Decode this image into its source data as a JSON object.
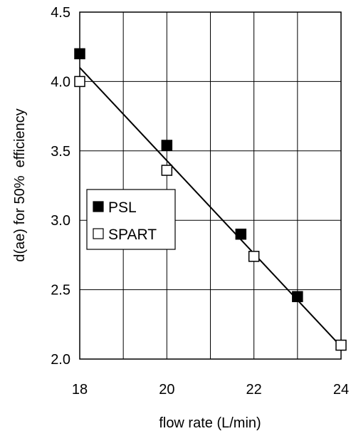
{
  "chart_data": {
    "type": "scatter",
    "xlabel": "flow rate (L/min)",
    "ylabel": "d(ae) for 50%  efficiency",
    "xlim": [
      18,
      24
    ],
    "ylim": [
      2.0,
      4.5
    ],
    "xticks": [
      "18",
      "20",
      "22",
      "24"
    ],
    "yticks": [
      "2.0",
      "2.5",
      "3.0",
      "3.5",
      "4.0",
      "4.5"
    ],
    "grid": true,
    "legend_position": "middle-left",
    "series": [
      {
        "name": "PSL",
        "marker": "filled-square",
        "color": "#000000",
        "x": [
          18,
          20,
          21.7,
          23
        ],
        "y": [
          4.2,
          3.54,
          2.9,
          2.45
        ]
      },
      {
        "name": "SPART",
        "marker": "open-square",
        "color": "#000000",
        "x": [
          18,
          20,
          22,
          24
        ],
        "y": [
          4.0,
          3.36,
          2.74,
          2.1
        ]
      }
    ],
    "trendline": {
      "x": [
        18,
        24
      ],
      "y": [
        4.1,
        2.09
      ]
    }
  }
}
